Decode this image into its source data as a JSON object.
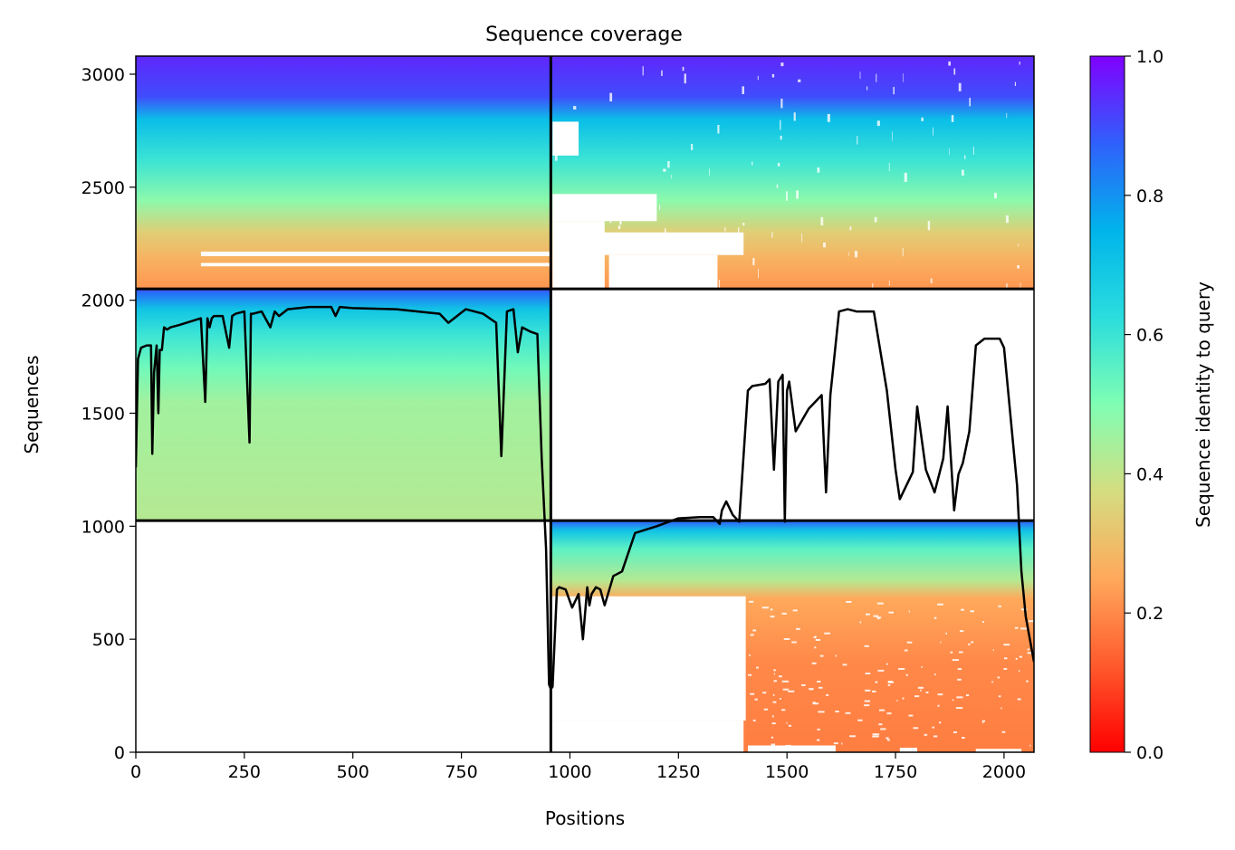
{
  "chart_data": {
    "type": "heatmap",
    "title": "Sequence coverage",
    "xlabel": "Positions",
    "ylabel": "Sequences",
    "xlim": [
      0,
      2069
    ],
    "ylim": [
      0,
      3080
    ],
    "x_ticks": [
      0,
      250,
      500,
      750,
      1000,
      1250,
      1500,
      1750,
      2000
    ],
    "y_ticks": [
      0,
      500,
      1000,
      1500,
      2000,
      2500,
      3000
    ],
    "colorbar": {
      "label": "Sequence identity to query",
      "range": [
        0,
        1
      ],
      "ticks": [
        "0.0",
        "0.2",
        "0.4",
        "0.6",
        "0.8",
        "1.0"
      ],
      "colormap": "rainbow_r"
    },
    "chain_boundaries": {
      "x": [
        956
      ],
      "y": [
        1025,
        2050
      ]
    },
    "msa_blocks": [
      {
        "name": "paired",
        "x": [
          0,
          2069
        ],
        "y": [
          2050,
          3080
        ],
        "identity_bands": [
          [
            2050,
            0.22
          ],
          [
            2180,
            0.27
          ],
          [
            2300,
            0.34
          ],
          [
            2440,
            0.48
          ],
          [
            2620,
            0.6
          ],
          [
            2800,
            0.72
          ],
          [
            2900,
            0.9
          ],
          [
            3080,
            0.95
          ]
        ]
      },
      {
        "name": "chain-A-unpaired",
        "x": [
          0,
          956
        ],
        "y": [
          1025,
          2050
        ],
        "identity_bands": [
          [
            1025,
            0.42
          ],
          [
            1550,
            0.45
          ],
          [
            1700,
            0.52
          ],
          [
            1850,
            0.6
          ],
          [
            1960,
            0.7
          ],
          [
            2030,
            0.85
          ],
          [
            2050,
            0.9
          ]
        ]
      },
      {
        "name": "chain-B-unpaired",
        "x": [
          956,
          2069
        ],
        "y": [
          0,
          1025
        ],
        "identity_bands": [
          [
            0,
            0.18
          ],
          [
            400,
            0.2
          ],
          [
            680,
            0.25
          ],
          [
            760,
            0.42
          ],
          [
            900,
            0.55
          ],
          [
            980,
            0.7
          ],
          [
            1025,
            0.88
          ]
        ]
      }
    ],
    "coverage_line": {
      "x": [
        0,
        5,
        12,
        25,
        35,
        38,
        42,
        48,
        52,
        55,
        60,
        65,
        72,
        80,
        100,
        150,
        160,
        165,
        170,
        175,
        180,
        200,
        215,
        222,
        230,
        250,
        262,
        265,
        270,
        290,
        310,
        320,
        330,
        350,
        400,
        450,
        460,
        470,
        500,
        600,
        650,
        700,
        720,
        740,
        760,
        800,
        830,
        842,
        855,
        870,
        880,
        890,
        910,
        925,
        935,
        945,
        952,
        956,
        960,
        970,
        975,
        990,
        1005,
        1020,
        1030,
        1040,
        1045,
        1050,
        1060,
        1070,
        1080,
        1100,
        1120,
        1150,
        1200,
        1250,
        1300,
        1330,
        1345,
        1350,
        1360,
        1375,
        1390,
        1410,
        1420,
        1450,
        1460,
        1470,
        1480,
        1490,
        1495,
        1500,
        1505,
        1520,
        1550,
        1580,
        1590,
        1600,
        1620,
        1640,
        1660,
        1700,
        1730,
        1750,
        1760,
        1770,
        1790,
        1800,
        1820,
        1840,
        1860,
        1870,
        1885,
        1895,
        1905,
        1920,
        1935,
        1955,
        1990,
        2000,
        2030,
        2040,
        2050,
        2069
      ],
      "y": [
        1260,
        1740,
        1790,
        1800,
        1800,
        1320,
        1680,
        1800,
        1500,
        1780,
        1780,
        1880,
        1870,
        1880,
        1890,
        1920,
        1550,
        1920,
        1880,
        1920,
        1930,
        1930,
        1790,
        1930,
        1940,
        1950,
        1370,
        1940,
        1940,
        1950,
        1880,
        1950,
        1930,
        1960,
        1970,
        1970,
        1930,
        1970,
        1965,
        1960,
        1950,
        1940,
        1900,
        1930,
        1960,
        1940,
        1900,
        1310,
        1950,
        1960,
        1770,
        1880,
        1860,
        1850,
        1300,
        900,
        300,
        280,
        290,
        720,
        730,
        720,
        640,
        700,
        500,
        730,
        650,
        700,
        730,
        720,
        650,
        780,
        800,
        970,
        1000,
        1035,
        1040,
        1040,
        1010,
        1070,
        1110,
        1050,
        1020,
        1600,
        1620,
        1630,
        1650,
        1250,
        1640,
        1670,
        1020,
        1600,
        1640,
        1420,
        1520,
        1580,
        1150,
        1580,
        1950,
        1960,
        1950,
        1950,
        1600,
        1250,
        1120,
        1160,
        1240,
        1530,
        1250,
        1150,
        1300,
        1530,
        1070,
        1230,
        1280,
        1420,
        1800,
        1830,
        1830,
        1790,
        1180,
        800,
        600,
        400
      ]
    }
  }
}
